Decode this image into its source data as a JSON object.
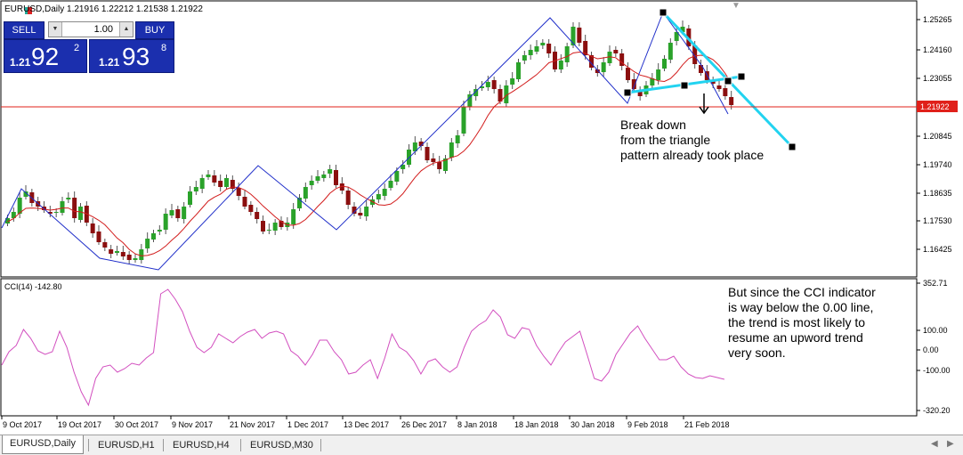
{
  "window": {
    "title": "EURUSD,Daily  1.21916 1.22212 1.21538 1.21922"
  },
  "trade_panel": {
    "sell_label": "SELL",
    "buy_label": "BUY",
    "lot_value": "1.00",
    "sell_price_small": "1.21",
    "sell_price_big": "92",
    "sell_price_sup": "2",
    "buy_price_small": "1.21",
    "buy_price_big": "93",
    "buy_price_sup": "8"
  },
  "price_axis": {
    "labels": [
      "1.25265",
      "1.24160",
      "1.23055",
      "1.21922",
      "1.20845",
      "1.19740",
      "1.18635",
      "1.17530",
      "1.16425"
    ],
    "current_price": "1.21922",
    "current_price_color": "#e0201a"
  },
  "cci": {
    "label": "CCI(14) -142.80",
    "axis_labels": [
      "352.71",
      "100.00",
      "0.00",
      "-100.00",
      "-320.20"
    ],
    "line_color": "#d24fbf"
  },
  "time_axis": {
    "labels": [
      "9 Oct 2017",
      "19 Oct 2017",
      "30 Oct 2017",
      "9 Nov 2017",
      "21 Nov 2017",
      "1 Dec 2017",
      "13 Dec 2017",
      "26 Dec 2017",
      "8 Jan 2018",
      "18 Jan 2018",
      "30 Jan 2018",
      "9 Feb 2018",
      "21 Feb 2018"
    ]
  },
  "annotations": {
    "price_note": "Break down\nfrom the triangle\npattern already took place",
    "cci_note": "But since the CCI indicator\nis way below the 0.00 line,\nthe trend is most likely to\nresume an upword trend\nvery soon."
  },
  "tabs": [
    {
      "label": "EURUSD,Daily",
      "active": true
    },
    {
      "label": "EURUSD,H1",
      "active": false
    },
    {
      "label": "EURUSD,H4",
      "active": false
    },
    {
      "label": "EURUSD,M30",
      "active": false
    }
  ],
  "colors": {
    "bull": "#2aa22a",
    "bear": "#8b0f0f",
    "ma": "#d21c1c",
    "zigzag": "#1f2ec9",
    "triangle": "#22d3f0"
  }
}
